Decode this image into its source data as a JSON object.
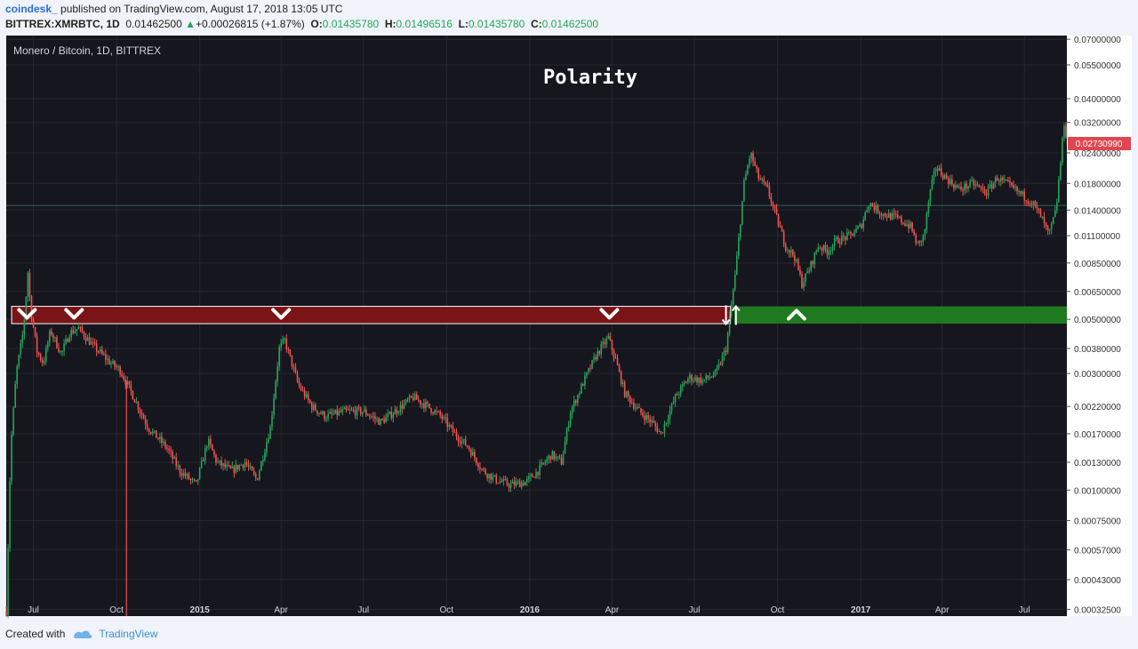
{
  "header": {
    "author": "coindesk_",
    "published": " published on TradingView.com, August 17, 2018 13:05 UTC",
    "symbol": "BITTREX:XMRBTC, 1D",
    "last": "0.01462500",
    "change": "+0.00026815 (+1.87%)",
    "o_label": "O:",
    "o_value": "0.01435780",
    "h_label": "H:",
    "h_value": "0.01496516",
    "l_label": "L:",
    "l_value": "0.01435780",
    "c_label": "C:",
    "c_value": "0.01462500"
  },
  "footer": {
    "created_with": "Created with",
    "brand": "TradingView"
  },
  "colors": {
    "bull": "#26a65b",
    "bear": "#ef5350",
    "resistance": "#7a1416",
    "support": "#1f7a1f",
    "background": "#16161e",
    "last_price": "#e0464f"
  },
  "chart_data": {
    "type": "candlestick",
    "title": "Polarity",
    "legend": "Monero / Bitcoin, 1D, BITTREX",
    "y_scale": "log",
    "ylim": [
      0.000305,
      0.0725
    ],
    "xlim": [
      "2014-06-01",
      "2017-08-17"
    ],
    "y_ticks": [
      "0.07000000",
      "0.05500000",
      "0.04000000",
      "0.03200000",
      "0.02400000",
      "0.01800000",
      "0.01400000",
      "0.01100000",
      "0.00850000",
      "0.00650000",
      "0.00500000",
      "0.00380000",
      "0.00300000",
      "0.00220000",
      "0.00170000",
      "0.00130000",
      "0.00100000",
      "0.00075000",
      "0.00057000",
      "0.00043000",
      "0.00032500"
    ],
    "x_ticks": [
      {
        "label": "Jul",
        "date": "2014-07-01"
      },
      {
        "label": "Oct",
        "date": "2014-10-01"
      },
      {
        "label": "2015",
        "date": "2015-01-01",
        "bold": true
      },
      {
        "label": "Apr",
        "date": "2015-04-01"
      },
      {
        "label": "Jul",
        "date": "2015-07-01"
      },
      {
        "label": "Oct",
        "date": "2015-10-01"
      },
      {
        "label": "2016",
        "date": "2016-01-01",
        "bold": true
      },
      {
        "label": "Apr",
        "date": "2016-04-01"
      },
      {
        "label": "Jul",
        "date": "2016-07-01"
      },
      {
        "label": "Oct",
        "date": "2016-10-01"
      },
      {
        "label": "2017",
        "date": "2017-01-01",
        "bold": true
      },
      {
        "label": "Apr",
        "date": "2017-04-01"
      },
      {
        "label": "Jul",
        "date": "2017-07-01"
      }
    ],
    "last_price": "0.02730990",
    "reference_line": 0.01462,
    "zones": [
      {
        "name": "resistance",
        "from": "2014-06-07",
        "to": "2016-08-10",
        "low": 0.0048,
        "high": 0.00565
      },
      {
        "name": "support",
        "from": "2016-08-14",
        "to": "2017-08-17",
        "low": 0.0048,
        "high": 0.00565
      }
    ],
    "markers": [
      {
        "date": "2014-06-24",
        "price": 0.0052,
        "shape": "down-chevron"
      },
      {
        "date": "2014-08-15",
        "price": 0.0052,
        "shape": "down-chevron"
      },
      {
        "date": "2015-04-01",
        "price": 0.0052,
        "shape": "down-chevron"
      },
      {
        "date": "2016-03-29",
        "price": 0.0052,
        "shape": "down-chevron"
      },
      {
        "date": "2016-08-05",
        "price": 0.0052,
        "shape": "down-arrow"
      },
      {
        "date": "2016-08-16",
        "price": 0.0052,
        "shape": "up-arrow"
      },
      {
        "date": "2016-10-22",
        "price": 0.0052,
        "shape": "up-chevron"
      }
    ],
    "price_path": [
      [
        "2014-06-01",
        0.00032
      ],
      [
        "2014-06-06",
        0.0015
      ],
      [
        "2014-06-12",
        0.003
      ],
      [
        "2014-06-20",
        0.0045
      ],
      [
        "2014-06-25",
        0.0078
      ],
      [
        "2014-06-28",
        0.0055
      ],
      [
        "2014-07-05",
        0.0037
      ],
      [
        "2014-07-12",
        0.0033
      ],
      [
        "2014-07-20",
        0.0045
      ],
      [
        "2014-08-01",
        0.0036
      ],
      [
        "2014-08-10",
        0.0044
      ],
      [
        "2014-08-20",
        0.0046
      ],
      [
        "2014-09-05",
        0.0039
      ],
      [
        "2014-09-25",
        0.0033
      ],
      [
        "2014-10-05",
        0.0031
      ],
      [
        "2014-10-20",
        0.0024
      ],
      [
        "2014-11-05",
        0.0018
      ],
      [
        "2014-11-25",
        0.0015
      ],
      [
        "2014-12-10",
        0.0012
      ],
      [
        "2014-12-28",
        0.00105
      ],
      [
        "2015-01-10",
        0.0016
      ],
      [
        "2015-01-20",
        0.0013
      ],
      [
        "2015-02-05",
        0.0012
      ],
      [
        "2015-02-20",
        0.0013
      ],
      [
        "2015-03-05",
        0.0011
      ],
      [
        "2015-03-20",
        0.0018
      ],
      [
        "2015-03-30",
        0.0038
      ],
      [
        "2015-04-05",
        0.0041
      ],
      [
        "2015-04-20",
        0.0027
      ],
      [
        "2015-05-05",
        0.0022
      ],
      [
        "2015-05-20",
        0.002
      ],
      [
        "2015-06-10",
        0.0021
      ],
      [
        "2015-07-01",
        0.0021
      ],
      [
        "2015-07-20",
        0.0019
      ],
      [
        "2015-08-05",
        0.0021
      ],
      [
        "2015-08-25",
        0.0024
      ],
      [
        "2015-09-10",
        0.0022
      ],
      [
        "2015-09-25",
        0.002
      ],
      [
        "2015-10-10",
        0.0017
      ],
      [
        "2015-10-25",
        0.0015
      ],
      [
        "2015-11-10",
        0.0012
      ],
      [
        "2015-11-25",
        0.0011
      ],
      [
        "2015-12-10",
        0.00105
      ],
      [
        "2015-12-28",
        0.00108
      ],
      [
        "2016-01-10",
        0.0012
      ],
      [
        "2016-01-25",
        0.0014
      ],
      [
        "2016-02-05",
        0.0013
      ],
      [
        "2016-02-15",
        0.0021
      ],
      [
        "2016-03-01",
        0.0028
      ],
      [
        "2016-03-15",
        0.0036
      ],
      [
        "2016-03-28",
        0.0042
      ],
      [
        "2016-04-05",
        0.0034
      ],
      [
        "2016-04-15",
        0.0025
      ],
      [
        "2016-05-01",
        0.0021
      ],
      [
        "2016-05-15",
        0.0019
      ],
      [
        "2016-05-25",
        0.0017
      ],
      [
        "2016-06-10",
        0.0024
      ],
      [
        "2016-06-25",
        0.0029
      ],
      [
        "2016-07-10",
        0.0028
      ],
      [
        "2016-07-25",
        0.003
      ],
      [
        "2016-08-05",
        0.0038
      ],
      [
        "2016-08-15",
        0.0075
      ],
      [
        "2016-08-25",
        0.018
      ],
      [
        "2016-09-01",
        0.024
      ],
      [
        "2016-09-10",
        0.019
      ],
      [
        "2016-09-20",
        0.017
      ],
      [
        "2016-09-30",
        0.013
      ],
      [
        "2016-10-10",
        0.01
      ],
      [
        "2016-10-20",
        0.009
      ],
      [
        "2016-10-28",
        0.007
      ],
      [
        "2016-11-05",
        0.008
      ],
      [
        "2016-11-15",
        0.01
      ],
      [
        "2016-11-25",
        0.0095
      ],
      [
        "2016-12-05",
        0.0105
      ],
      [
        "2016-12-20",
        0.011
      ],
      [
        "2017-01-01",
        0.012
      ],
      [
        "2017-01-10",
        0.015
      ],
      [
        "2017-01-25",
        0.0135
      ],
      [
        "2017-02-10",
        0.013
      ],
      [
        "2017-02-25",
        0.012
      ],
      [
        "2017-03-05",
        0.01
      ],
      [
        "2017-03-12",
        0.011
      ],
      [
        "2017-03-18",
        0.016
      ],
      [
        "2017-03-25",
        0.021
      ],
      [
        "2017-04-05",
        0.019
      ],
      [
        "2017-04-20",
        0.017
      ],
      [
        "2017-05-05",
        0.018
      ],
      [
        "2017-05-20",
        0.0165
      ],
      [
        "2017-06-01",
        0.019
      ],
      [
        "2017-06-15",
        0.0175
      ],
      [
        "2017-06-30",
        0.016
      ],
      [
        "2017-07-10",
        0.015
      ],
      [
        "2017-07-20",
        0.013
      ],
      [
        "2017-07-28",
        0.011
      ],
      [
        "2017-08-05",
        0.014
      ],
      [
        "2017-08-10",
        0.022
      ],
      [
        "2017-08-14",
        0.032
      ],
      [
        "2017-08-17",
        0.0273
      ]
    ]
  }
}
